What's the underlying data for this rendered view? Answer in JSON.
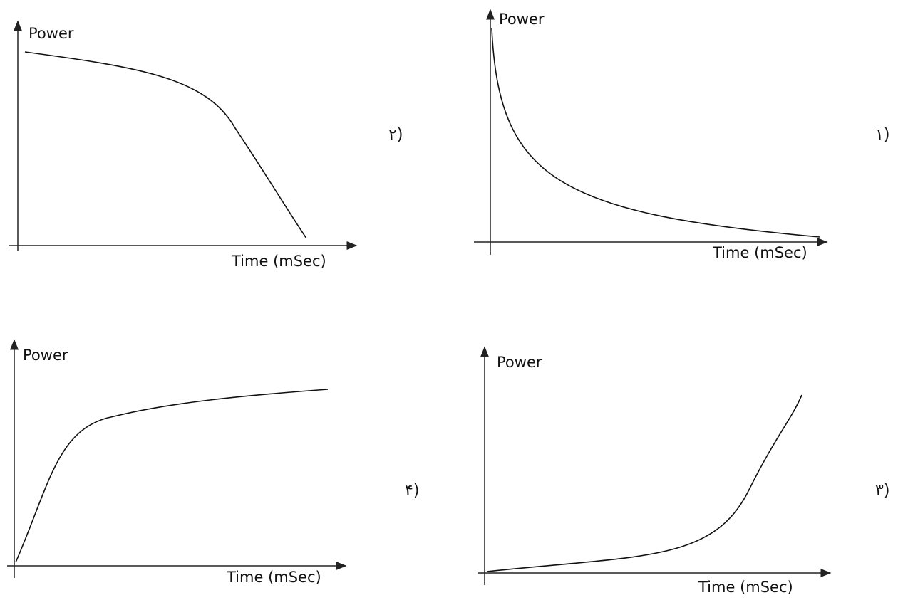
{
  "panels": [
    {
      "option": "۲)",
      "y_label": "Power",
      "x_label": "Time (mSec)"
    },
    {
      "option": "۱)",
      "y_label": "Power",
      "x_label": "Time (mSec)"
    },
    {
      "option": "۴)",
      "y_label": "Power",
      "x_label": "Time (mSec)"
    },
    {
      "option": "۳)",
      "y_label": "Power",
      "x_label": "Time (mSec)"
    }
  ]
}
